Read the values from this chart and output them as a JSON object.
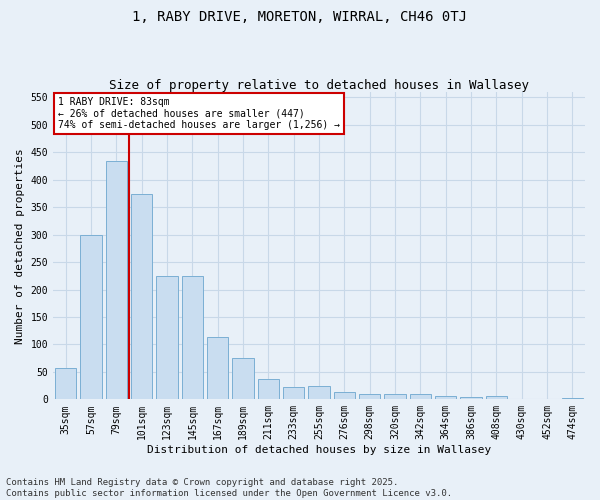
{
  "title": "1, RABY DRIVE, MORETON, WIRRAL, CH46 0TJ",
  "subtitle": "Size of property relative to detached houses in Wallasey",
  "xlabel": "Distribution of detached houses by size in Wallasey",
  "ylabel": "Number of detached properties",
  "categories": [
    "35sqm",
    "57sqm",
    "79sqm",
    "101sqm",
    "123sqm",
    "145sqm",
    "167sqm",
    "189sqm",
    "211sqm",
    "233sqm",
    "255sqm",
    "276sqm",
    "298sqm",
    "320sqm",
    "342sqm",
    "364sqm",
    "386sqm",
    "408sqm",
    "430sqm",
    "452sqm",
    "474sqm"
  ],
  "values": [
    57,
    300,
    435,
    375,
    225,
    225,
    113,
    76,
    37,
    22,
    25,
    14,
    9,
    9,
    9,
    6,
    4,
    6,
    0,
    0,
    3
  ],
  "bar_color": "#c9ddf0",
  "bar_edge_color": "#7bafd4",
  "annotation_text": "1 RABY DRIVE: 83sqm\n← 26% of detached houses are smaller (447)\n74% of semi-detached houses are larger (1,256) →",
  "annotation_box_color": "#ffffff",
  "annotation_box_edge_color": "#cc0000",
  "vline_color": "#cc0000",
  "grid_color": "#c8d8e8",
  "background_color": "#e8f0f8",
  "ylim": [
    0,
    560
  ],
  "yticks": [
    0,
    50,
    100,
    150,
    200,
    250,
    300,
    350,
    400,
    450,
    500,
    550
  ],
  "footnote": "Contains HM Land Registry data © Crown copyright and database right 2025.\nContains public sector information licensed under the Open Government Licence v3.0.",
  "title_fontsize": 10,
  "subtitle_fontsize": 9,
  "xlabel_fontsize": 8,
  "ylabel_fontsize": 8,
  "tick_fontsize": 7,
  "annotation_fontsize": 7,
  "footnote_fontsize": 6.5
}
